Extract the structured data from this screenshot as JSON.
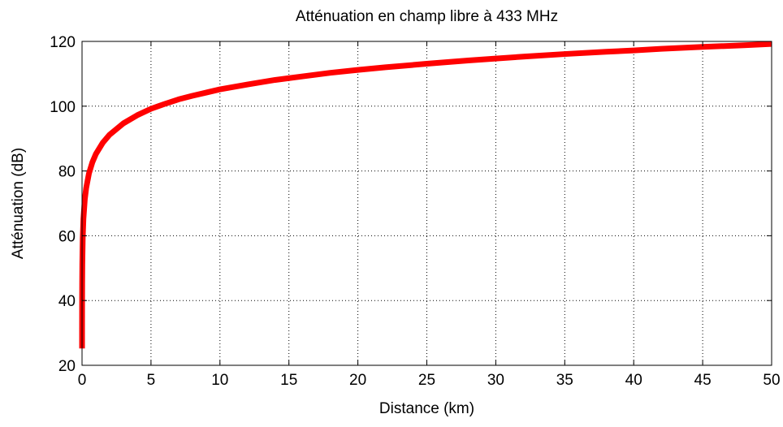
{
  "chart_data": {
    "type": "line",
    "title": "Atténuation en champ libre à 433 MHz",
    "xlabel": "Distance (km)",
    "ylabel": "Atténuation (dB)",
    "xlim": [
      0,
      50
    ],
    "ylim": [
      20,
      120
    ],
    "xticks": [
      0,
      5,
      10,
      15,
      20,
      25,
      30,
      35,
      40,
      45,
      50
    ],
    "yticks": [
      20,
      40,
      60,
      80,
      100,
      120
    ],
    "xtick_labels": [
      "0",
      "5",
      "10",
      "15",
      "20",
      "25",
      "30",
      "35",
      "40",
      "45",
      "50"
    ],
    "ytick_labels": [
      "20",
      "40",
      "60",
      "80",
      "100",
      "120"
    ],
    "grid": true,
    "grid_style": "dotted",
    "series": [
      {
        "color": "#ff0000",
        "x": [
          0.001,
          0.002,
          0.005,
          0.01,
          0.02,
          0.05,
          0.1,
          0.2,
          0.3,
          0.5,
          0.75,
          1,
          1.5,
          2,
          3,
          4,
          5,
          6,
          7,
          8,
          9,
          10,
          12,
          14,
          16,
          18,
          20,
          22,
          25,
          28,
          30,
          32,
          35,
          38,
          40,
          42,
          45,
          48,
          50
        ],
        "y": [
          25.2,
          31.2,
          39.2,
          45.2,
          51.2,
          59.2,
          65.2,
          71.2,
          74.7,
          79.2,
          82.7,
          85.2,
          88.7,
          91.2,
          94.7,
          97.2,
          99.2,
          100.7,
          102.1,
          103.2,
          104.2,
          105.2,
          106.7,
          108.1,
          109.2,
          110.3,
          111.2,
          112.0,
          113.1,
          114.1,
          114.7,
          115.3,
          116.1,
          116.8,
          117.2,
          117.7,
          118.3,
          118.8,
          119.2
        ]
      }
    ]
  }
}
